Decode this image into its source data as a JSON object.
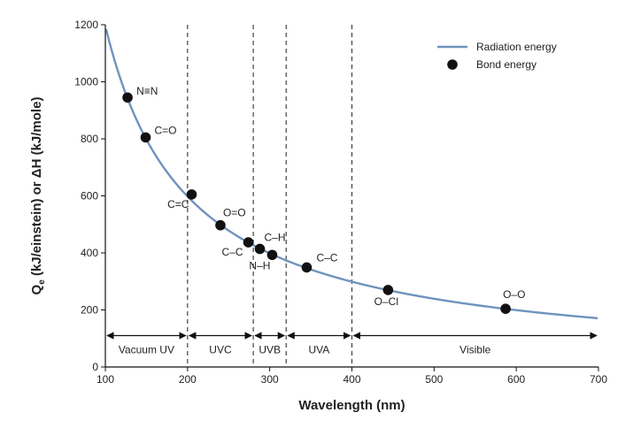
{
  "chart_data": {
    "type": "line",
    "title": "",
    "xlabel": "Wavelength (nm)",
    "ylabel": {
      "prefix": "Q",
      "subscript": "e",
      "rest": " (kJ/einstein) or ΔH (kJ/mole)"
    },
    "xlim": [
      100,
      700
    ],
    "ylim": [
      0,
      1200
    ],
    "xticks": [
      100,
      200,
      300,
      400,
      500,
      600,
      700
    ],
    "yticks": [
      0,
      200,
      400,
      600,
      800,
      1000,
      1200
    ],
    "series": [
      {
        "name": "Radiation energy",
        "kind": "line",
        "color": "#6f93bd",
        "formula": "Qe = 119600 / wavelength",
        "constant": 119600
      }
    ],
    "bond_energy": {
      "name": "Bond energy",
      "color": "#111111",
      "points": [
        {
          "label": "N≡N",
          "x": 127,
          "y": 945
        },
        {
          "label": "C=O",
          "x": 149,
          "y": 805
        },
        {
          "label": "C=C",
          "x": 205,
          "y": 605
        },
        {
          "label": "O=O",
          "x": 240,
          "y": 497
        },
        {
          "label": "C–C",
          "x": 274,
          "y": 437
        },
        {
          "label": "C–H",
          "x": 288,
          "y": 414
        },
        {
          "label": "N–H",
          "x": 303,
          "y": 393
        },
        {
          "label": "C–C",
          "x": 345,
          "y": 349
        },
        {
          "label": "O–Cl",
          "x": 444,
          "y": 270
        },
        {
          "label": "O–O",
          "x": 587,
          "y": 204
        }
      ]
    },
    "boundaries": [
      200,
      280,
      320,
      400
    ],
    "regions": [
      {
        "label": "Vacuum UV",
        "from": 100,
        "to": 200
      },
      {
        "label": "UVC",
        "from": 200,
        "to": 280
      },
      {
        "label": "UVB",
        "from": 280,
        "to": 320
      },
      {
        "label": "UVA",
        "from": 320,
        "to": 400
      },
      {
        "label": "Visible",
        "from": 400,
        "to": 700
      }
    ],
    "region_arrow_y": 110,
    "legend": {
      "position": "top-right",
      "entries": [
        "Radiation energy",
        "Bond energy"
      ]
    }
  }
}
